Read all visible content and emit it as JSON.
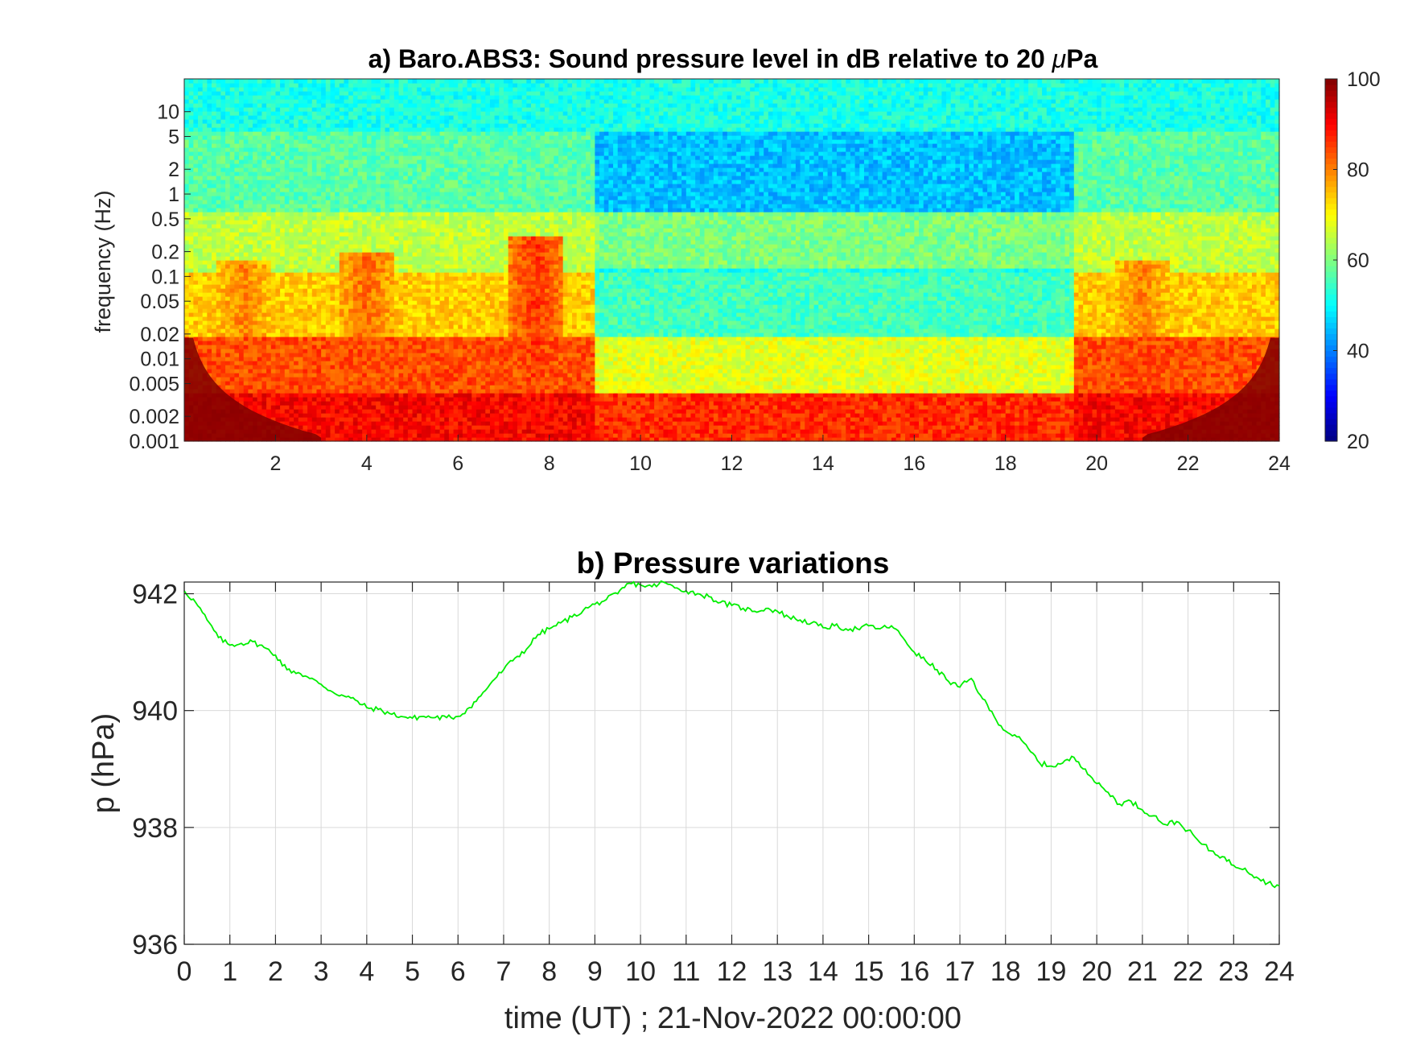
{
  "chart_data": [
    {
      "type": "heatmap",
      "title": "a) Baro.ABS3: Sound pressure level in dB relative to 20 μPa",
      "title_parts": {
        "pre": "a) Baro.ABS3: Sound pressure level in dB relative to 20 ",
        "mu": "μ",
        "post": "Pa"
      },
      "ylabel": "frequency (Hz)",
      "xlim": [
        0,
        24
      ],
      "ylim": [
        0.001,
        25
      ],
      "yscale": "log",
      "xticks": [
        2,
        4,
        6,
        8,
        10,
        12,
        14,
        16,
        18,
        20,
        22,
        24
      ],
      "yticks": [
        0.001,
        0.002,
        0.005,
        0.01,
        0.02,
        0.05,
        0.1,
        0.2,
        0.5,
        1,
        2,
        5,
        10
      ],
      "ytick_labels": [
        "0.001",
        "0.002",
        "0.005",
        "0.01",
        "0.02",
        "0.05",
        "0.1",
        "0.2",
        "0.5",
        "1",
        "2",
        "5",
        "10"
      ],
      "colorbar": {
        "colormap": "jet",
        "clim": [
          20,
          100
        ],
        "ticks": [
          20,
          40,
          60,
          80,
          100
        ]
      },
      "grid": false,
      "bands": [
        {
          "fmin": 5.5,
          "fmax": 25,
          "level_quiet": 52,
          "level_active": 52
        },
        {
          "fmin": 0.6,
          "fmax": 5.5,
          "level_quiet": 43,
          "level_active": 57
        },
        {
          "fmin": 0.13,
          "fmax": 0.6,
          "level_quiet": 59,
          "level_active": 65
        },
        {
          "fmin": 0.11,
          "fmax": 0.13,
          "level_quiet": 50,
          "level_active": 64
        },
        {
          "fmin": 0.018,
          "fmax": 0.11,
          "level_quiet": 52,
          "level_active": 74
        },
        {
          "fmin": 0.004,
          "fmax": 0.018,
          "level_quiet": 65,
          "level_active": 84
        },
        {
          "fmin": 0.001,
          "fmax": 0.004,
          "level_quiet": 86,
          "level_active": 90
        }
      ],
      "activity_hours": [
        {
          "t0": 0,
          "t1": 9,
          "activity": 1
        },
        {
          "t0": 9,
          "t1": 19.5,
          "activity": 0.15
        },
        {
          "t0": 19.5,
          "t1": 24,
          "activity": 1
        }
      ],
      "peak_bursts": [
        {
          "t": 7.7,
          "fmax": 0.3,
          "level": 86
        },
        {
          "t": 4.0,
          "fmax": 0.2,
          "level": 82
        },
        {
          "t": 21.0,
          "fmax": 0.15,
          "level": 80
        },
        {
          "t": 1.3,
          "fmax": 0.15,
          "level": 80
        }
      ],
      "edge_cone_level": 100
    },
    {
      "type": "line",
      "title": "b) Pressure variations",
      "ylabel": "p (hPa)",
      "xlabel": "time (UT) ; 21-Nov-2022 00:00:00",
      "xlim": [
        0,
        24
      ],
      "ylim": [
        936,
        942.2
      ],
      "xticks": [
        0,
        1,
        2,
        3,
        4,
        5,
        6,
        7,
        8,
        9,
        10,
        11,
        12,
        13,
        14,
        15,
        16,
        17,
        18,
        19,
        20,
        21,
        22,
        23,
        24
      ],
      "yticks": [
        936,
        938,
        940,
        942
      ],
      "grid": true,
      "series": [
        {
          "color": "#00ee00",
          "x": [
            0,
            0.25,
            0.5,
            0.75,
            1.0,
            1.25,
            1.5,
            1.75,
            2.0,
            2.25,
            2.5,
            2.75,
            3.0,
            3.25,
            3.5,
            3.75,
            4.0,
            4.25,
            4.5,
            4.75,
            5.0,
            5.25,
            5.5,
            5.75,
            6.0,
            6.25,
            6.5,
            6.75,
            7.0,
            7.25,
            7.5,
            7.75,
            8.0,
            8.25,
            8.5,
            8.75,
            9.0,
            9.25,
            9.5,
            9.75,
            10.0,
            10.25,
            10.5,
            10.75,
            11.0,
            11.25,
            11.5,
            11.75,
            12.0,
            12.25,
            12.5,
            12.75,
            13.0,
            13.25,
            13.5,
            13.75,
            14.0,
            14.25,
            14.5,
            14.75,
            15.0,
            15.25,
            15.5,
            15.75,
            16.0,
            16.25,
            16.5,
            16.75,
            17.0,
            17.25,
            17.5,
            17.75,
            18.0,
            18.25,
            18.5,
            18.75,
            19.0,
            19.25,
            19.5,
            19.75,
            20.0,
            20.25,
            20.5,
            20.75,
            21.0,
            21.25,
            21.5,
            21.75,
            22.0,
            22.25,
            22.5,
            22.75,
            23.0,
            23.25,
            23.5,
            23.75,
            24.0
          ],
          "y": [
            942.05,
            941.85,
            941.55,
            941.25,
            941.12,
            941.15,
            941.18,
            941.08,
            940.95,
            940.7,
            940.65,
            940.55,
            940.45,
            940.32,
            940.25,
            940.18,
            940.05,
            940.02,
            939.95,
            939.9,
            939.87,
            939.9,
            939.88,
            939.88,
            939.9,
            940.05,
            940.25,
            940.5,
            940.7,
            940.9,
            941.05,
            941.3,
            941.4,
            941.5,
            941.6,
            941.72,
            941.82,
            941.9,
            942.0,
            942.18,
            942.15,
            942.12,
            942.2,
            942.1,
            942.05,
            942.0,
            941.95,
            941.85,
            941.8,
            941.75,
            941.7,
            941.75,
            941.7,
            941.6,
            941.55,
            941.5,
            941.42,
            941.45,
            941.4,
            941.4,
            941.45,
            941.4,
            941.45,
            941.25,
            941.0,
            940.85,
            940.7,
            940.5,
            940.4,
            940.55,
            940.2,
            939.9,
            939.65,
            939.55,
            939.35,
            939.1,
            939.05,
            939.1,
            939.2,
            939.0,
            938.75,
            938.6,
            938.4,
            938.45,
            938.3,
            938.2,
            938.05,
            938.1,
            937.95,
            937.75,
            937.6,
            937.5,
            937.35,
            937.3,
            937.15,
            937.05,
            937.0
          ]
        }
      ]
    }
  ]
}
